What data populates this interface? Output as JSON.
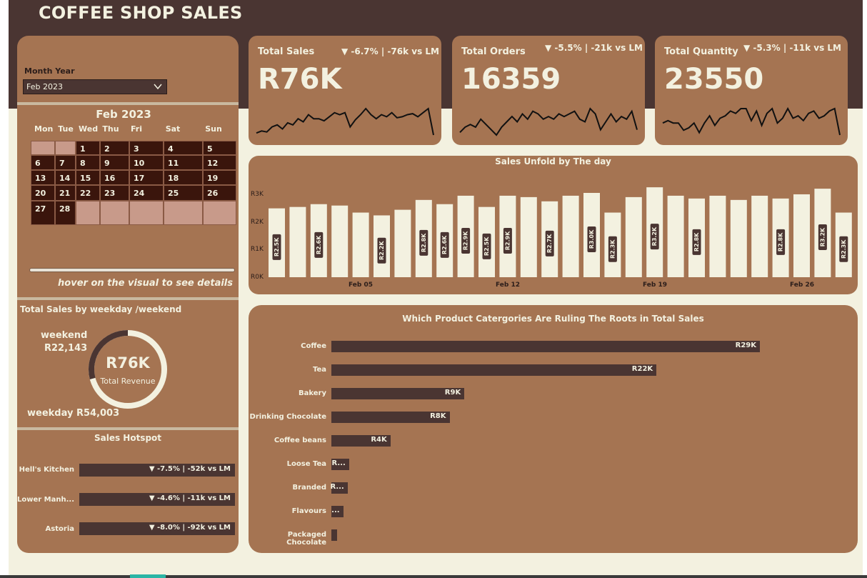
{
  "app": {
    "title": "COFFEE SHOP SALES"
  },
  "colors": {
    "dark_brown": "#4a3532",
    "panel_brown": "#a57452",
    "cream": "#f3f1e0",
    "calendar_day": "#3a150c",
    "calendar_empty": "#c89a8a"
  },
  "filter": {
    "label": "Month Year",
    "value": "Feb 2023",
    "icon": "chevron-down-icon"
  },
  "calendar": {
    "title": "Feb 2023",
    "weekdays": [
      "Mon",
      "Tue",
      "Wed",
      "Thu",
      "Fri",
      "Sat",
      "Sun"
    ],
    "rows": [
      [
        "",
        "",
        "1",
        "2",
        "3",
        "4",
        "5"
      ],
      [
        "6",
        "7",
        "8",
        "9",
        "10",
        "11",
        "12"
      ],
      [
        "13",
        "14",
        "15",
        "16",
        "17",
        "18",
        "19"
      ],
      [
        "20",
        "21",
        "22",
        "23",
        "24",
        "25",
        "26"
      ],
      [
        "27",
        "28",
        "",
        "",
        "",
        "",
        ""
      ]
    ],
    "hint": "hover on the visual to see details"
  },
  "kpis": [
    {
      "name": "Total Sales",
      "value": "R76K",
      "delta": "▼ -6.7% | -76k vs LM",
      "spark": [
        28,
        26,
        27,
        22,
        20,
        24,
        18,
        20,
        14,
        17,
        10,
        14,
        14,
        16,
        12,
        8,
        10,
        8,
        22,
        15,
        10,
        4,
        10,
        14,
        10,
        12,
        8,
        13,
        12,
        10,
        9,
        12,
        8,
        4,
        30
      ]
    },
    {
      "name": "Total Orders",
      "value": "16359",
      "delta": "▼ -5.5% | -21k vs LM",
      "spark": [
        22,
        18,
        16,
        18,
        12,
        16,
        20,
        24,
        18,
        14,
        10,
        14,
        8,
        12,
        6,
        8,
        12,
        10,
        12,
        8,
        10,
        8,
        6,
        12,
        14,
        4,
        8,
        20,
        14,
        8,
        14,
        10,
        12,
        6,
        20
      ]
    },
    {
      "name": "Total Quantity",
      "value": "23550",
      "delta": "▼ -5.3% | -11k vs LM",
      "spark": [
        30,
        28,
        30,
        30,
        36,
        34,
        30,
        38,
        30,
        24,
        32,
        26,
        24,
        20,
        22,
        18,
        18,
        28,
        20,
        32,
        22,
        18,
        30,
        26,
        18,
        26,
        24,
        28,
        22,
        20,
        26,
        24,
        20,
        18,
        40
      ]
    }
  ],
  "daily": {
    "title": "Sales Unfold by The day",
    "y_ticks": [
      "R3K",
      "R2K",
      "R1K",
      "R0K"
    ],
    "x_ticks": [
      "Feb 05",
      "Feb 12",
      "Feb 19",
      "Feb 26"
    ]
  },
  "chart_data": [
    {
      "type": "bar",
      "title": "Sales Unfold by The day",
      "xlabel": "",
      "ylabel": "",
      "ylim": [
        0,
        3000
      ],
      "categories": [
        "Feb 01",
        "Feb 02",
        "Feb 03",
        "Feb 04",
        "Feb 05",
        "Feb 06",
        "Feb 07",
        "Feb 08",
        "Feb 09",
        "Feb 10",
        "Feb 11",
        "Feb 12",
        "Feb 13",
        "Feb 14",
        "Feb 15",
        "Feb 16",
        "Feb 17",
        "Feb 18",
        "Feb 19",
        "Feb 20",
        "Feb 21",
        "Feb 22",
        "Feb 23",
        "Feb 24",
        "Feb 25",
        "Feb 26",
        "Feb 27",
        "Feb 28"
      ],
      "values": [
        2450,
        2500,
        2600,
        2550,
        2300,
        2200,
        2400,
        2750,
        2600,
        2900,
        2500,
        2900,
        2850,
        2700,
        2900,
        3000,
        2300,
        2850,
        3200,
        2900,
        2800,
        2900,
        2750,
        2900,
        2800,
        2950,
        3150,
        2300
      ],
      "data_labels": [
        "R2.5K",
        "",
        "R2.6K",
        "",
        "",
        "R2.2K",
        "",
        "R2.8K",
        "R2.6K",
        "R2.9K",
        "R2.5K",
        "R2.9K",
        "",
        "R2.7K",
        "",
        "R3.0K",
        "R2.3K",
        "",
        "R3.2K",
        "",
        "R2.8K",
        "",
        "",
        "",
        "R2.8K",
        "",
        "R3.2K",
        "R2.3K"
      ]
    },
    {
      "type": "bar",
      "title": "Which Product Catergories Are Ruling The Roots in Total Sales",
      "xlabel": "",
      "ylabel": "",
      "categories": [
        "Coffee",
        "Tea",
        "Bakery",
        "Drinking Chocolate",
        "Coffee beans",
        "Loose Tea",
        "Branded",
        "Flavours",
        "Packaged Chocolate"
      ],
      "values": [
        29000,
        22000,
        9000,
        8000,
        4000,
        1200,
        1100,
        800,
        400
      ],
      "data_labels": [
        "R29K",
        "R22K",
        "R9K",
        "R8K",
        "R4K",
        "R...",
        "R...",
        "...",
        ""
      ]
    },
    {
      "type": "pie",
      "title": "Total Sales by weekday /weekend",
      "categories": [
        "weekend",
        "weekday"
      ],
      "values": [
        22143,
        54003
      ],
      "center_value": "R76K",
      "center_label": "Total Revenue"
    }
  ],
  "weekday": {
    "title": "Total Sales by weekday /weekend",
    "weekend_label": "weekend",
    "weekend_value": "R22,143",
    "weekday_text": "weekday R54,003",
    "center_value": "R76K",
    "center_label": "Total Revenue"
  },
  "hotspot": {
    "title": "Sales Hotspot",
    "items": [
      {
        "name": "Hell's Kitchen",
        "delta": "▼ -7.5% | -52k vs LM"
      },
      {
        "name": "Lower Manh...",
        "delta": "▼ -4.6% | -11k vs LM"
      },
      {
        "name": "Astoria",
        "delta": "▼ -8.0% | -92k vs LM"
      }
    ]
  },
  "categories": {
    "title": "Which Product Catergories Are Ruling The Roots in Total Sales"
  }
}
